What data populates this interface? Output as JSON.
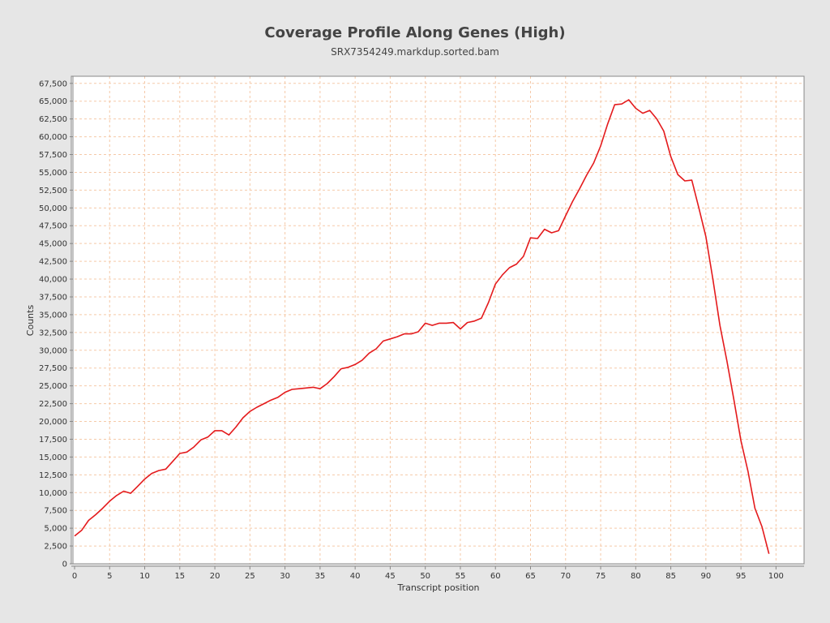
{
  "chart_data": {
    "type": "line",
    "title": "Coverage Profile Along Genes (High)",
    "subtitle": "SRX7354249.markdup.sorted.bam",
    "xlabel": "Transcript position",
    "ylabel": "Counts",
    "xlim": [
      0,
      104
    ],
    "ylim": [
      0,
      68500
    ],
    "xticks": [
      0,
      5,
      10,
      15,
      20,
      25,
      30,
      35,
      40,
      45,
      50,
      55,
      60,
      65,
      70,
      75,
      80,
      85,
      90,
      95,
      100
    ],
    "xtick_labels": [
      "0",
      "5",
      "10",
      "15",
      "20",
      "25",
      "30",
      "35",
      "40",
      "45",
      "50",
      "55",
      "60",
      "65",
      "70",
      "75",
      "80",
      "85",
      "90",
      "95",
      "100"
    ],
    "yticks": [
      0,
      2500,
      5000,
      7500,
      10000,
      12500,
      15000,
      17500,
      20000,
      22500,
      25000,
      27500,
      30000,
      32500,
      35000,
      37500,
      40000,
      42500,
      45000,
      47500,
      50000,
      52500,
      55000,
      57500,
      60000,
      62500,
      65000,
      67500
    ],
    "ytick_labels": [
      "0",
      "2,500",
      "5,000",
      "7,500",
      "10,000",
      "12,500",
      "15,000",
      "17,500",
      "20,000",
      "22,500",
      "25,000",
      "27,500",
      "30,000",
      "32,500",
      "35,000",
      "37,500",
      "40,000",
      "42,500",
      "45,000",
      "47,500",
      "50,000",
      "52,500",
      "55,000",
      "57,500",
      "60,000",
      "62,500",
      "65,000",
      "67,500"
    ],
    "grid": true,
    "colors": {
      "line": "#e41a1c",
      "grid": "#f5c9a8",
      "plot_bg": "#ffffff",
      "page_bg": "#e6e6e6"
    },
    "series": [
      {
        "x": [
          0,
          1,
          2,
          3,
          4,
          5,
          6,
          7,
          8,
          9,
          10,
          11,
          12,
          13,
          14,
          15,
          16,
          17,
          18,
          19,
          20,
          21,
          22,
          23,
          24,
          25,
          26,
          27,
          28,
          29,
          30,
          31,
          32,
          33,
          34,
          35,
          36,
          37,
          38,
          39,
          40,
          41,
          42,
          43,
          44,
          45,
          46,
          47,
          48,
          49,
          50,
          51,
          52,
          53,
          54,
          55,
          56,
          57,
          58,
          59,
          60,
          61,
          62,
          63,
          64,
          65,
          66,
          67,
          68,
          69,
          70,
          71,
          72,
          73,
          74,
          75,
          76,
          77,
          78,
          79,
          80,
          81,
          82,
          83,
          84,
          85,
          86,
          87,
          88,
          89,
          90,
          91,
          92,
          93,
          94,
          95,
          96,
          97,
          98,
          99
        ],
        "values": [
          3900,
          4700,
          6100,
          6900,
          7800,
          8800,
          9600,
          10200,
          9900,
          10900,
          11900,
          12700,
          13100,
          13300,
          14400,
          15500,
          15700,
          16400,
          17400,
          17800,
          18700,
          18700,
          18100,
          19200,
          20500,
          21400,
          22000,
          22500,
          23000,
          23400,
          24100,
          24500,
          24600,
          24700,
          24800,
          24600,
          25300,
          26300,
          27400,
          27600,
          28000,
          28600,
          29600,
          30200,
          31300,
          31600,
          31900,
          32300,
          32300,
          32600,
          33800,
          33500,
          33800,
          33800,
          33900,
          33000,
          33900,
          34100,
          34500,
          36700,
          39300,
          40600,
          41600,
          42100,
          43200,
          45800,
          45700,
          47000,
          46500,
          46800,
          48900,
          50900,
          52700,
          54600,
          56300,
          58700,
          61800,
          64500,
          64600,
          65200,
          64000,
          63300,
          63700,
          62500,
          60800,
          57200,
          54700,
          53800,
          53900,
          50000,
          46000,
          40000,
          33500,
          28500,
          23000,
          17300,
          13000,
          7800,
          5200,
          1400
        ]
      }
    ]
  }
}
